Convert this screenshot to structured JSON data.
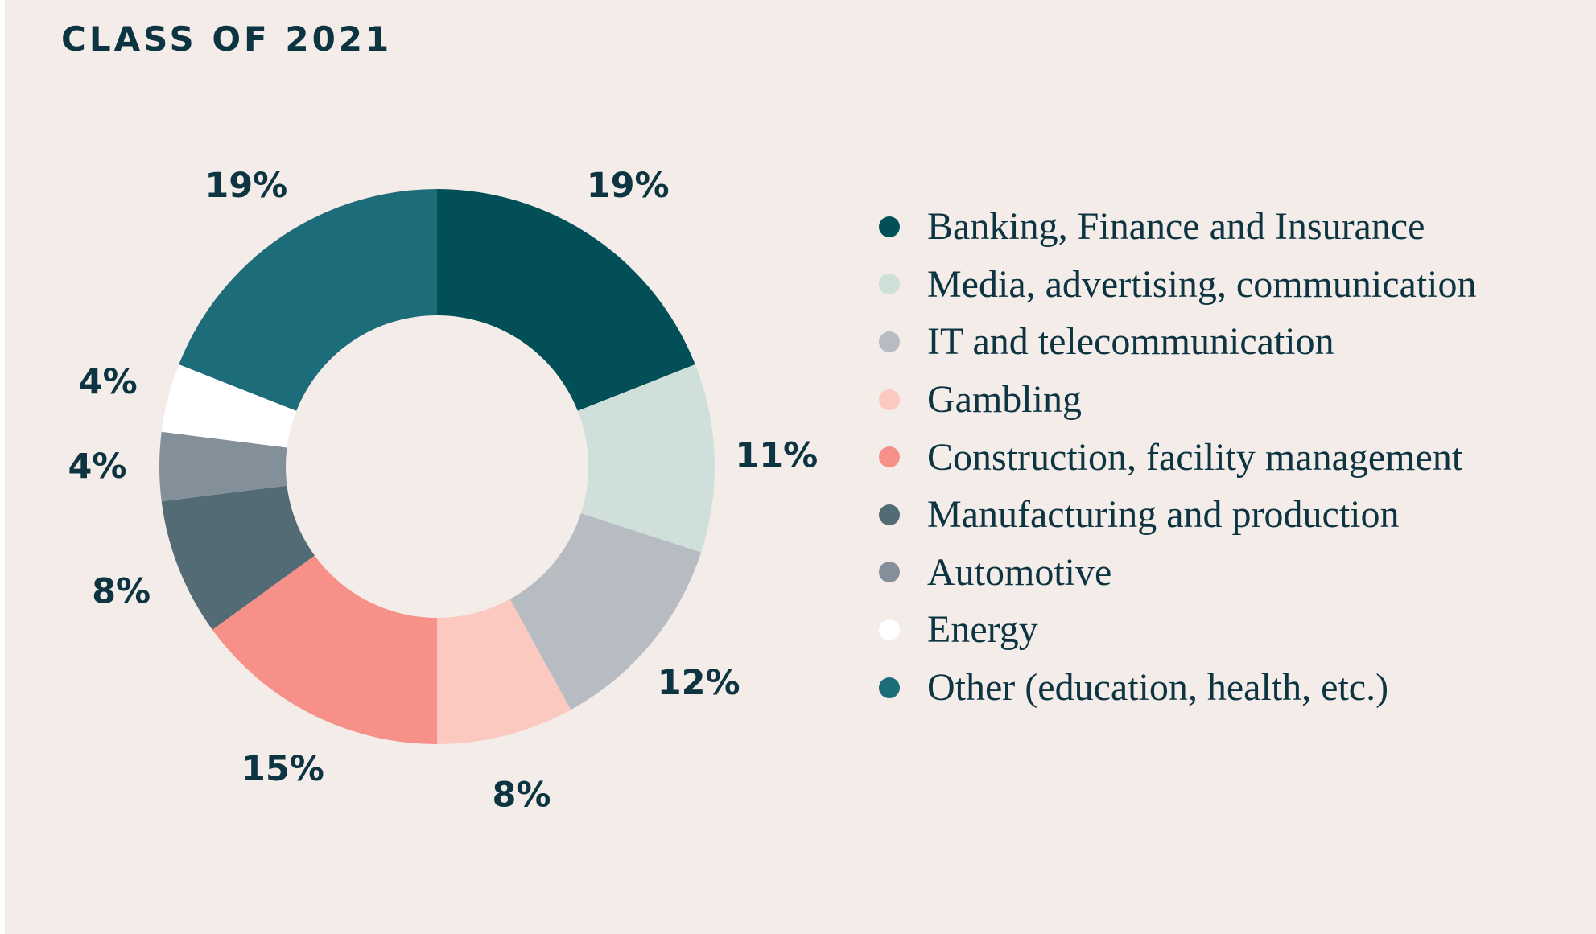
{
  "chart_data": {
    "type": "pie",
    "variant": "donut",
    "title": "CLASS OF 2021",
    "legend_position": "right",
    "slices": [
      {
        "label": "Banking, Finance and Insurance",
        "value": 19,
        "value_label": "19%",
        "color": "#034f57"
      },
      {
        "label": "Media, advertising, communication",
        "value": 11,
        "value_label": "11%",
        "color": "#cfe0da"
      },
      {
        "label": "IT and telecommunication",
        "value": 12,
        "value_label": "12%",
        "color": "#b6bcc2"
      },
      {
        "label": "Gambling",
        "value": 8,
        "value_label": "8%",
        "color": "#fcc9c0"
      },
      {
        "label": "Construction, facility management",
        "value": 15,
        "value_label": "15%",
        "color": "#f69088"
      },
      {
        "label": "Manufacturing and production",
        "value": 8,
        "value_label": "8%",
        "color": "#526b75"
      },
      {
        "label": "Automotive",
        "value": 4,
        "value_label": "4%",
        "color": "#838f99"
      },
      {
        "label": "Energy",
        "value": 4,
        "value_label": "4%",
        "color": "#ffffff"
      },
      {
        "label": "Other (education, health, etc.)",
        "value": 19,
        "value_label": "19%",
        "color": "#1d6c79"
      }
    ]
  },
  "colors": {
    "background": "#f3ece9",
    "text": "#0d3441"
  }
}
